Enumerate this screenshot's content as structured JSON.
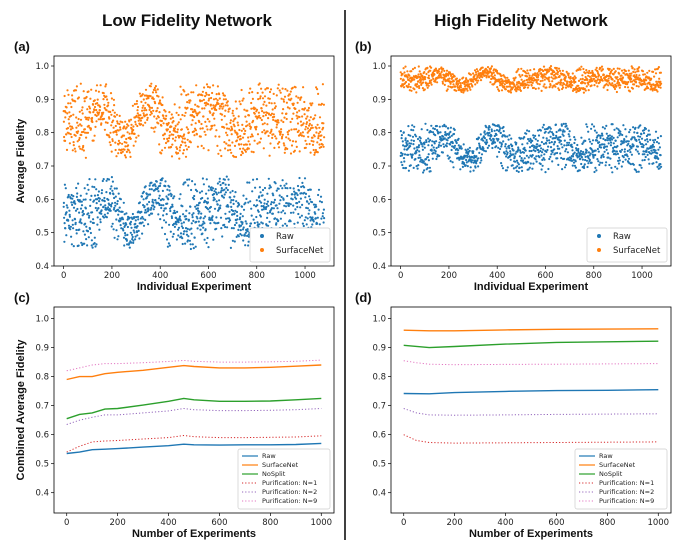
{
  "figure": {
    "left_title": "Low Fidelity Network",
    "right_title": "High Fidelity Network"
  },
  "chart_data": [
    {
      "id": "a",
      "panel_label": "(a)",
      "type": "scatter",
      "xlabel": "Individual Experiment",
      "ylabel": "Average Fidelity",
      "xlim": [
        -40,
        1120
      ],
      "ylim": [
        0.4,
        1.03
      ],
      "xticks": [
        0,
        200,
        400,
        600,
        800,
        1000
      ],
      "yticks": [
        0.4,
        0.5,
        0.6,
        0.7,
        0.8,
        0.9,
        1.0
      ],
      "ytick_labels": [
        "0.4",
        "0.5",
        "0.6",
        "0.7",
        "0.8",
        "0.9",
        "1.0"
      ],
      "legend_position": "lower-right",
      "n_points": 1080,
      "series": [
        {
          "name": "Raw",
          "color": "#1f77b4",
          "band": [
            0.45,
            0.67
          ]
        },
        {
          "name": "SurfaceNet",
          "color": "#ff7f0e",
          "band": [
            0.72,
            0.95
          ]
        }
      ]
    },
    {
      "id": "b",
      "panel_label": "(b)",
      "type": "scatter",
      "xlabel": "Individual Experiment",
      "ylabel": "",
      "xlim": [
        -40,
        1120
      ],
      "ylim": [
        0.4,
        1.03
      ],
      "xticks": [
        0,
        200,
        400,
        600,
        800,
        1000
      ],
      "yticks": [
        0.4,
        0.5,
        0.6,
        0.7,
        0.8,
        0.9,
        1.0
      ],
      "ytick_labels": [
        "0.4",
        "0.5",
        "0.6",
        "0.7",
        "0.8",
        "0.9",
        "1.0"
      ],
      "legend_position": "lower-right",
      "n_points": 1080,
      "series": [
        {
          "name": "Raw",
          "color": "#1f77b4",
          "band": [
            0.68,
            0.83
          ]
        },
        {
          "name": "SurfaceNet",
          "color": "#ff7f0e",
          "band": [
            0.92,
            1.0
          ]
        }
      ]
    },
    {
      "id": "c",
      "panel_label": "(c)",
      "type": "line",
      "xlabel": "Number of Experiments",
      "ylabel": "Combined Average Fidelity",
      "xlim": [
        -50,
        1050
      ],
      "ylim": [
        0.33,
        1.04
      ],
      "xticks": [
        0,
        200,
        400,
        600,
        800,
        1000
      ],
      "yticks": [
        0.4,
        0.5,
        0.6,
        0.7,
        0.8,
        0.9,
        1.0
      ],
      "ytick_labels": [
        "0.4",
        "0.5",
        "0.6",
        "0.7",
        "0.8",
        "0.9",
        "1.0"
      ],
      "legend_position": "lower-right",
      "series": [
        {
          "name": "Raw",
          "color": "#1f77b4",
          "style": "solid",
          "x": [
            0,
            50,
            100,
            150,
            200,
            300,
            400,
            460,
            500,
            600,
            700,
            800,
            900,
            1000
          ],
          "y": [
            0.535,
            0.54,
            0.548,
            0.55,
            0.552,
            0.557,
            0.562,
            0.567,
            0.565,
            0.564,
            0.565,
            0.565,
            0.566,
            0.57
          ]
        },
        {
          "name": "SurfaceNet",
          "color": "#ff7f0e",
          "style": "solid",
          "x": [
            0,
            50,
            100,
            150,
            200,
            300,
            400,
            460,
            500,
            600,
            700,
            800,
            900,
            1000
          ],
          "y": [
            0.79,
            0.8,
            0.8,
            0.81,
            0.815,
            0.822,
            0.832,
            0.838,
            0.835,
            0.83,
            0.83,
            0.832,
            0.836,
            0.84
          ]
        },
        {
          "name": "NoSplit",
          "color": "#2ca02c",
          "style": "solid",
          "x": [
            0,
            50,
            100,
            150,
            200,
            300,
            400,
            460,
            500,
            600,
            700,
            800,
            900,
            1000
          ],
          "y": [
            0.655,
            0.67,
            0.675,
            0.688,
            0.69,
            0.702,
            0.715,
            0.725,
            0.72,
            0.715,
            0.715,
            0.716,
            0.72,
            0.725
          ]
        },
        {
          "name": "Purification: N=1",
          "color": "#d62728",
          "style": "dotted",
          "x": [
            0,
            50,
            100,
            150,
            200,
            300,
            400,
            460,
            500,
            600,
            700,
            800,
            900,
            1000
          ],
          "y": [
            0.54,
            0.56,
            0.575,
            0.578,
            0.58,
            0.585,
            0.59,
            0.597,
            0.593,
            0.59,
            0.59,
            0.591,
            0.592,
            0.596
          ]
        },
        {
          "name": "Purification: N=2",
          "color": "#9467bd",
          "style": "dotted",
          "x": [
            0,
            50,
            100,
            150,
            200,
            300,
            400,
            460,
            500,
            600,
            700,
            800,
            900,
            1000
          ],
          "y": [
            0.635,
            0.65,
            0.66,
            0.668,
            0.668,
            0.675,
            0.682,
            0.69,
            0.686,
            0.683,
            0.683,
            0.684,
            0.686,
            0.69
          ]
        },
        {
          "name": "Purification: N=9",
          "color": "#e377c2",
          "style": "dotted",
          "x": [
            0,
            50,
            100,
            150,
            200,
            300,
            400,
            460,
            500,
            600,
            700,
            800,
            900,
            1000
          ],
          "y": [
            0.82,
            0.83,
            0.84,
            0.845,
            0.845,
            0.848,
            0.852,
            0.856,
            0.853,
            0.85,
            0.85,
            0.851,
            0.853,
            0.857
          ]
        }
      ]
    },
    {
      "id": "d",
      "panel_label": "(d)",
      "type": "line",
      "xlabel": "Number of Experiments",
      "ylabel": "",
      "xlim": [
        -50,
        1050
      ],
      "ylim": [
        0.33,
        1.04
      ],
      "xticks": [
        0,
        200,
        400,
        600,
        800,
        1000
      ],
      "yticks": [
        0.4,
        0.5,
        0.6,
        0.7,
        0.8,
        0.9,
        1.0
      ],
      "ytick_labels": [
        "0.4",
        "0.5",
        "0.6",
        "0.7",
        "0.8",
        "0.9",
        "1.0"
      ],
      "legend_position": "lower-right",
      "series": [
        {
          "name": "Raw",
          "color": "#1f77b4",
          "style": "solid",
          "x": [
            0,
            100,
            200,
            400,
            600,
            800,
            1000
          ],
          "y": [
            0.742,
            0.741,
            0.745,
            0.749,
            0.752,
            0.753,
            0.755
          ]
        },
        {
          "name": "SurfaceNet",
          "color": "#ff7f0e",
          "style": "solid",
          "x": [
            0,
            100,
            200,
            400,
            600,
            800,
            1000
          ],
          "y": [
            0.96,
            0.958,
            0.958,
            0.961,
            0.963,
            0.964,
            0.965
          ]
        },
        {
          "name": "NoSplit",
          "color": "#2ca02c",
          "style": "solid",
          "x": [
            0,
            100,
            200,
            400,
            600,
            800,
            1000
          ],
          "y": [
            0.908,
            0.9,
            0.904,
            0.912,
            0.918,
            0.92,
            0.922
          ]
        },
        {
          "name": "Purification: N=1",
          "color": "#d62728",
          "style": "dotted",
          "x": [
            0,
            50,
            100,
            200,
            400,
            600,
            800,
            1000
          ],
          "y": [
            0.6,
            0.58,
            0.573,
            0.571,
            0.572,
            0.573,
            0.574,
            0.575
          ]
        },
        {
          "name": "Purification: N=2",
          "color": "#9467bd",
          "style": "dotted",
          "x": [
            0,
            50,
            100,
            200,
            400,
            600,
            800,
            1000
          ],
          "y": [
            0.69,
            0.675,
            0.668,
            0.667,
            0.668,
            0.67,
            0.671,
            0.672
          ]
        },
        {
          "name": "Purification: N=9",
          "color": "#e377c2",
          "style": "dotted",
          "x": [
            0,
            50,
            100,
            200,
            400,
            600,
            800,
            1000
          ],
          "y": [
            0.855,
            0.848,
            0.843,
            0.841,
            0.842,
            0.843,
            0.844,
            0.845
          ]
        }
      ]
    }
  ]
}
